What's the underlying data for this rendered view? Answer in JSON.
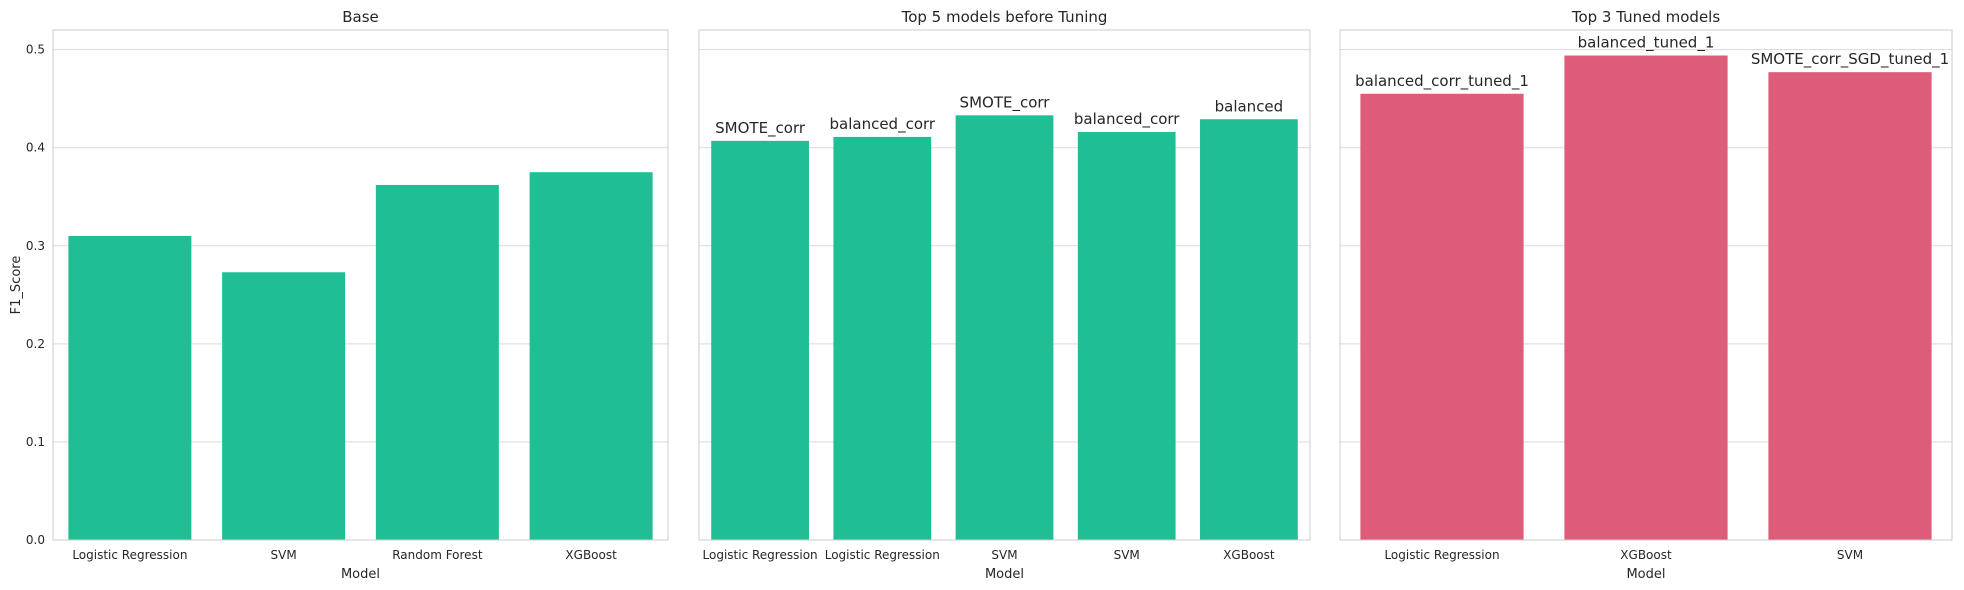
{
  "chart_data": [
    {
      "type": "bar",
      "title": "Base",
      "xlabel": "Model",
      "ylabel": "F1_Score",
      "ylim": [
        0,
        0.52
      ],
      "yticks": [
        "0.0",
        "0.1",
        "0.2",
        "0.3",
        "0.4",
        "0.5"
      ],
      "grid": true,
      "categories": [
        "Logistic Regression",
        "SVM",
        "Random Forest",
        "XGBoost"
      ],
      "values": [
        0.31,
        0.273,
        0.362,
        0.375
      ],
      "bar_labels": [],
      "color": "#20be94"
    },
    {
      "type": "bar",
      "title": "Top 5 models before Tuning",
      "xlabel": "Model",
      "ylabel": "",
      "ylim": [
        0,
        0.52
      ],
      "yticks": [],
      "grid": true,
      "categories": [
        "Logistic Regression",
        "Logistic Regression",
        "SVM",
        "SVM",
        "XGBoost"
      ],
      "values": [
        0.407,
        0.411,
        0.433,
        0.416,
        0.429
      ],
      "bar_labels": [
        "SMOTE_corr",
        "balanced_corr",
        "SMOTE_corr",
        "balanced_corr",
        "balanced"
      ],
      "color": "#20be94"
    },
    {
      "type": "bar",
      "title": "Top 3 Tuned models",
      "xlabel": "Model",
      "ylabel": "",
      "ylim": [
        0,
        0.52
      ],
      "yticks": [],
      "grid": true,
      "categories": [
        "Logistic Regression",
        "XGBoost",
        "SVM"
      ],
      "values": [
        0.455,
        0.494,
        0.477
      ],
      "bar_labels": [
        "balanced_corr_tuned_1",
        "balanced_tuned_1",
        "SMOTE_corr_SGD_tuned_1"
      ],
      "color": "#dc5c7a"
    }
  ]
}
